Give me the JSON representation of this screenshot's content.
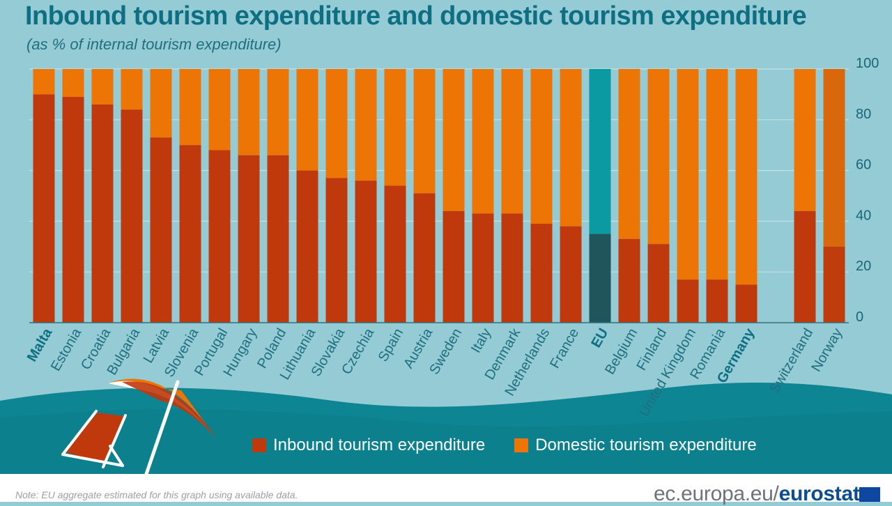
{
  "title": "Inbound tourism expenditure and domestic tourism expenditure",
  "subtitle": "(as % of internal tourism expenditure)",
  "note": "Note: EU aggregate estimated for this graph using available data.",
  "brand": {
    "domain": "ec.europa.eu/",
    "name": "eurostat"
  },
  "colors": {
    "inbound": "#c0390c",
    "domestic": "#ec7505",
    "eu_inbound": "#21555c",
    "eu_domestic": "#0b9aa2",
    "norway_inbound": "#bf3d0c",
    "norway_domestic": "#d9680d",
    "title": "#0e6f82",
    "background": "#94cbd4",
    "sea": "#0e8593"
  },
  "legend": {
    "inbound_label": "Inbound tourism expenditure",
    "domestic_label": "Domestic tourism expenditure"
  },
  "chart_data": {
    "type": "bar",
    "stacked": true,
    "categories": [
      "Malta",
      "Estonia",
      "Croatia",
      "Bulgaria",
      "Latvia",
      "Slovenia",
      "Portugal",
      "Hungary",
      "Poland",
      "Lithuania",
      "Slovakia",
      "Czechia",
      "Spain",
      "Austria",
      "Sweden",
      "Italy",
      "Denmark",
      "Netherlands",
      "France",
      "EU",
      "Belgium",
      "Finland",
      "United Kingdom",
      "Romania",
      "Germany",
      "",
      "Switzerland",
      "Norway"
    ],
    "bold_categories": [
      "Malta",
      "EU",
      "Germany"
    ],
    "series": [
      {
        "name": "Inbound tourism expenditure",
        "values": [
          90,
          89,
          86,
          84,
          73,
          70,
          68,
          66,
          66,
          60,
          57,
          56,
          54,
          51,
          44,
          43,
          43,
          39,
          38,
          35,
          33,
          31,
          17,
          17,
          15,
          null,
          44,
          30
        ]
      },
      {
        "name": "Domestic tourism expenditure",
        "values": [
          10,
          11,
          14,
          16,
          27,
          30,
          32,
          34,
          34,
          40,
          43,
          44,
          46,
          49,
          56,
          57,
          57,
          61,
          62,
          65,
          67,
          69,
          83,
          83,
          85,
          null,
          56,
          70
        ]
      }
    ],
    "yticks": [
      0,
      20,
      40,
      60,
      80,
      100
    ],
    "ylim": [
      0,
      100
    ],
    "y_axis_position": "right",
    "grid": true,
    "legend_position": "bottom"
  }
}
